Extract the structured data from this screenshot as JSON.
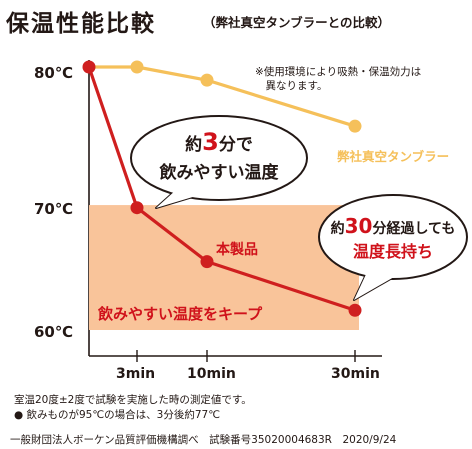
{
  "title": "保温性能比較",
  "subtitle": "（弊社真空タンブラーとの比較）",
  "note": "※使用環境により吸熱・保温効力は\n　異なります。",
  "colors": {
    "product_line": "#cf1f1f",
    "tumbler_line": "#f5c05a",
    "drink_zone": "#f9c49a",
    "text": "#231815",
    "accent_red": "#d0121b"
  },
  "callout_left": {
    "pre": "約",
    "num": "3",
    "mid": "分で",
    "line2": "飲みやすい温度"
  },
  "callout_right": {
    "pre": "約",
    "num": "30",
    "mid": "分経過しても",
    "line2": "温度長持ち"
  },
  "footnotes": [
    "室温20度±2度で試験を実施した時の測定値です。",
    "● 飲みものが95℃の場合は、3分後約77℃",
    "一般財団法人ボーケン品質評価機構調べ　試験番号35020004683R　2020/9/24"
  ],
  "chart_data": {
    "type": "line",
    "x_labels": [
      "3min",
      "10min",
      "30min"
    ],
    "y_labels": [
      "80℃",
      "70℃",
      "60℃"
    ],
    "ylim": [
      59,
      81
    ],
    "series": [
      {
        "name": "本製品",
        "color": "#cf1f1f",
        "x": [
          0,
          3,
          10,
          30
        ],
        "y": [
          80,
          69.3,
          65.2,
          61.5
        ]
      },
      {
        "name": "弊社真空タンブラー",
        "color": "#f5c05a",
        "x": [
          0,
          3,
          10,
          30
        ],
        "y": [
          80,
          80,
          79.0,
          75.5
        ]
      }
    ],
    "band": {
      "label": "飲みやすい温度をキープ",
      "y_range": [
        60,
        69.5
      ]
    }
  }
}
